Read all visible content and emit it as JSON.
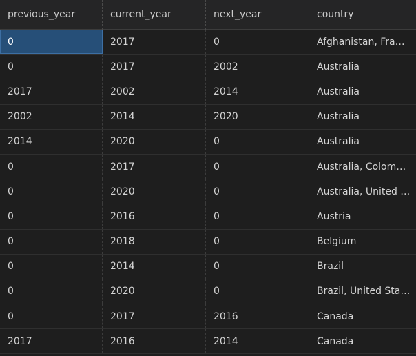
{
  "columns": [
    "previous_year",
    "current_year",
    "next_year",
    "country"
  ],
  "rows": [
    [
      "0",
      "2017",
      "0",
      "Afghanistan, France"
    ],
    [
      "0",
      "2017",
      "2002",
      "Australia"
    ],
    [
      "2017",
      "2002",
      "2014",
      "Australia"
    ],
    [
      "2002",
      "2014",
      "2020",
      "Australia"
    ],
    [
      "2014",
      "2020",
      "0",
      "Australia"
    ],
    [
      "0",
      "2017",
      "0",
      "Australia, Colombia"
    ],
    [
      "0",
      "2020",
      "0",
      "Australia, United States"
    ],
    [
      "0",
      "2016",
      "0",
      "Austria"
    ],
    [
      "0",
      "2018",
      "0",
      "Belgium"
    ],
    [
      "0",
      "2014",
      "0",
      "Brazil"
    ],
    [
      "0",
      "2020",
      "0",
      "Brazil, United States"
    ],
    [
      "0",
      "2017",
      "2016",
      "Canada"
    ],
    [
      "2017",
      "2016",
      "2014",
      "Canada"
    ]
  ],
  "selected_cell": {
    "row": 0,
    "col": 0
  },
  "colors": {
    "background": "#1e1e1e",
    "header_bg": "#252526",
    "selection": "#264f78"
  }
}
